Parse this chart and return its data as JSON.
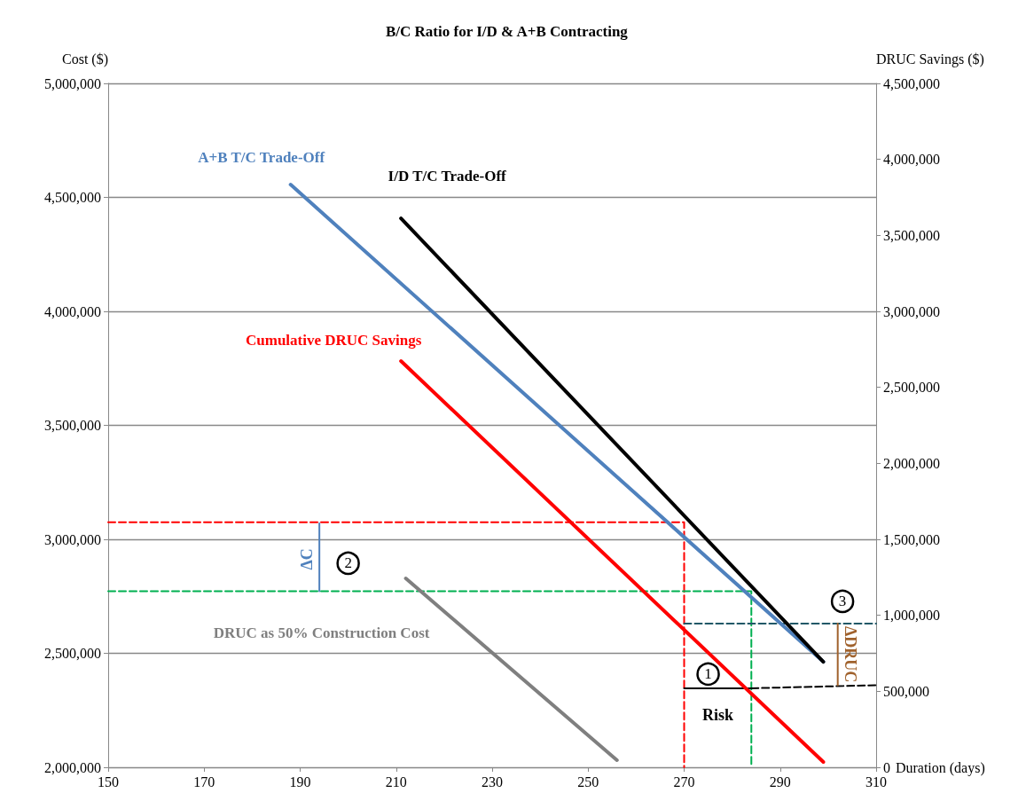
{
  "chart_data": {
    "type": "line",
    "title": "B/C Ratio for I/D & A+B Contracting",
    "ylabel": "Cost ($)",
    "y2label": "DRUC Savings ($)",
    "xlabel": "Duration (days)",
    "xlim": [
      150,
      310
    ],
    "xticks": [
      150,
      170,
      190,
      210,
      230,
      250,
      270,
      290,
      310
    ],
    "ylim": [
      2000000,
      5000000
    ],
    "yticks": [
      {
        "value": 2000000,
        "label": "2,000,000"
      },
      {
        "value": 2500000,
        "label": "2,500,000"
      },
      {
        "value": 3000000,
        "label": "3,000,000"
      },
      {
        "value": 3500000,
        "label": "3,500,000"
      },
      {
        "value": 4000000,
        "label": "4,000,000"
      },
      {
        "value": 4500000,
        "label": "4,500,000"
      },
      {
        "value": 5000000,
        "label": "5,000,000"
      }
    ],
    "y2lim": [
      0,
      4500000
    ],
    "y2ticks": [
      0,
      {
        "value": 500000,
        "label": "500,000"
      },
      {
        "value": 1000000,
        "label": "1,000,000"
      },
      {
        "value": 1500000,
        "label": "1,500,000"
      },
      {
        "value": 2000000,
        "label": "2,000,000"
      },
      {
        "value": 2500000,
        "label": "2,500,000"
      },
      {
        "value": 3000000,
        "label": "3,000,000"
      },
      {
        "value": 3500000,
        "label": "3,500,000"
      },
      {
        "value": 4000000,
        "label": "4,000,000"
      },
      {
        "value": 4500000,
        "label": "4,500,000"
      }
    ],
    "grid": "y",
    "legend": false,
    "series": [
      {
        "name": "A+B T/C Trade-Off",
        "color": "#4f81bd",
        "x": [
          188,
          299
        ],
        "values": [
          4556000,
          2463000
        ]
      },
      {
        "name": "I/D T/C Trade-Off",
        "color": "#000000",
        "x": [
          211,
          299
        ],
        "values": [
          4408000,
          2463000
        ]
      },
      {
        "name": "Cumulative DRUC Savings",
        "color": "#ff0000",
        "axis": "y2",
        "x": [
          211,
          299
        ],
        "values": [
          2673000,
          35000
        ]
      },
      {
        "name": "DRUC as 50% Construction Cost",
        "color": "#7f7f7f",
        "axis": "y2",
        "x": [
          212,
          256
        ],
        "values": [
          1243000,
          47000
        ]
      },
      {
        "color": "#ff0000",
        "line_style": "dashed",
        "x": [
          150,
          270,
          270
        ],
        "values": [
          3075000,
          3075000,
          2000000
        ]
      },
      {
        "color": "#00b050",
        "line_style": "dashed",
        "x": [
          150,
          284,
          284
        ],
        "values": [
          2772000,
          2772000,
          2000000
        ]
      },
      {
        "color": "#215867",
        "line_style": "dashed",
        "axis": "y2",
        "x": [
          270,
          310
        ],
        "values": [
          946000,
          946000
        ]
      },
      {
        "color": "#000000",
        "line_style": "dashed",
        "axis": "y2",
        "x": [
          284,
          310
        ],
        "values": [
          520000,
          540000
        ]
      },
      {
        "color": "#000000",
        "axis": "y2",
        "x": [
          270,
          284
        ],
        "values": [
          520000,
          520000
        ]
      },
      {
        "color": "#4f81bd",
        "x": [
          194,
          194
        ],
        "values": [
          3070000,
          2772000
        ]
      },
      {
        "color": "#a0622d",
        "axis": "y2",
        "x": [
          302,
          302
        ],
        "values": [
          946000,
          540000
        ]
      }
    ],
    "annotations": [
      "ΔC",
      {
        "text": "2",
        "x": 200,
        "y": 2895000
      },
      "ΔDRUC",
      {
        "text": "3",
        "x": 303,
        "y": 2728000
      },
      {
        "text": "1",
        "x": 275,
        "y": 2409000
      },
      "Risk"
    ]
  }
}
